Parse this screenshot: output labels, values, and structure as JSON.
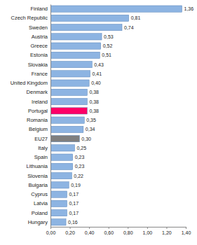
{
  "chart_data": {
    "type": "bar",
    "orientation": "horizontal",
    "categories": [
      "Finland",
      "Czech Republic",
      "Sweden",
      "Austria",
      "Greece",
      "Estonia",
      "Slovakia",
      "France",
      "United Kingdom",
      "Denmark",
      "Ireland",
      "Portugal",
      "Romania",
      "Belgium",
      "EU27",
      "Italy",
      "Spain",
      "Lithuania",
      "Slovenia",
      "Bulgaria",
      "Cyprus",
      "Latvia",
      "Poland",
      "Hungary"
    ],
    "values": [
      1.36,
      0.81,
      0.74,
      0.53,
      0.52,
      0.51,
      0.43,
      0.41,
      0.4,
      0.38,
      0.38,
      0.38,
      0.35,
      0.34,
      0.3,
      0.25,
      0.23,
      0.23,
      0.22,
      0.19,
      0.17,
      0.17,
      0.17,
      0.16
    ],
    "value_labels": [
      "1,36",
      "0,81",
      "0,74",
      "0,53",
      "0,52",
      "0,51",
      "0,43",
      "0,41",
      "0,40",
      "0,38",
      "0,38",
      "0,38",
      "0,35",
      "0,34",
      "0,30",
      "0,25",
      "0,23",
      "0,23",
      "0,22",
      "0,19",
      "0,17",
      "0,17",
      "0,17",
      "0,16"
    ],
    "colors": [
      "#8db4e2",
      "#8db4e2",
      "#8db4e2",
      "#8db4e2",
      "#8db4e2",
      "#8db4e2",
      "#8db4e2",
      "#8db4e2",
      "#8db4e2",
      "#8db4e2",
      "#8db4e2",
      "#ff0066",
      "#8db4e2",
      "#8db4e2",
      "#7f7f7f",
      "#8db4e2",
      "#8db4e2",
      "#8db4e2",
      "#8db4e2",
      "#8db4e2",
      "#8db4e2",
      "#8db4e2",
      "#8db4e2",
      "#8db4e2"
    ],
    "xlim": [
      0,
      1.4
    ],
    "xticks": [
      {
        "value": 0,
        "label": "0,00"
      },
      {
        "value": 0.2,
        "label": "0,20"
      },
      {
        "value": 0.4,
        "label": "0,40"
      },
      {
        "value": 0.6,
        "label": "0,60"
      },
      {
        "value": 0.8,
        "label": "0,80"
      },
      {
        "value": 1.0,
        "label": "1,00"
      },
      {
        "value": 1.2,
        "label": "1,20"
      },
      {
        "value": 1.4,
        "label": "1,40"
      }
    ],
    "data_labels": true,
    "grid": false
  }
}
